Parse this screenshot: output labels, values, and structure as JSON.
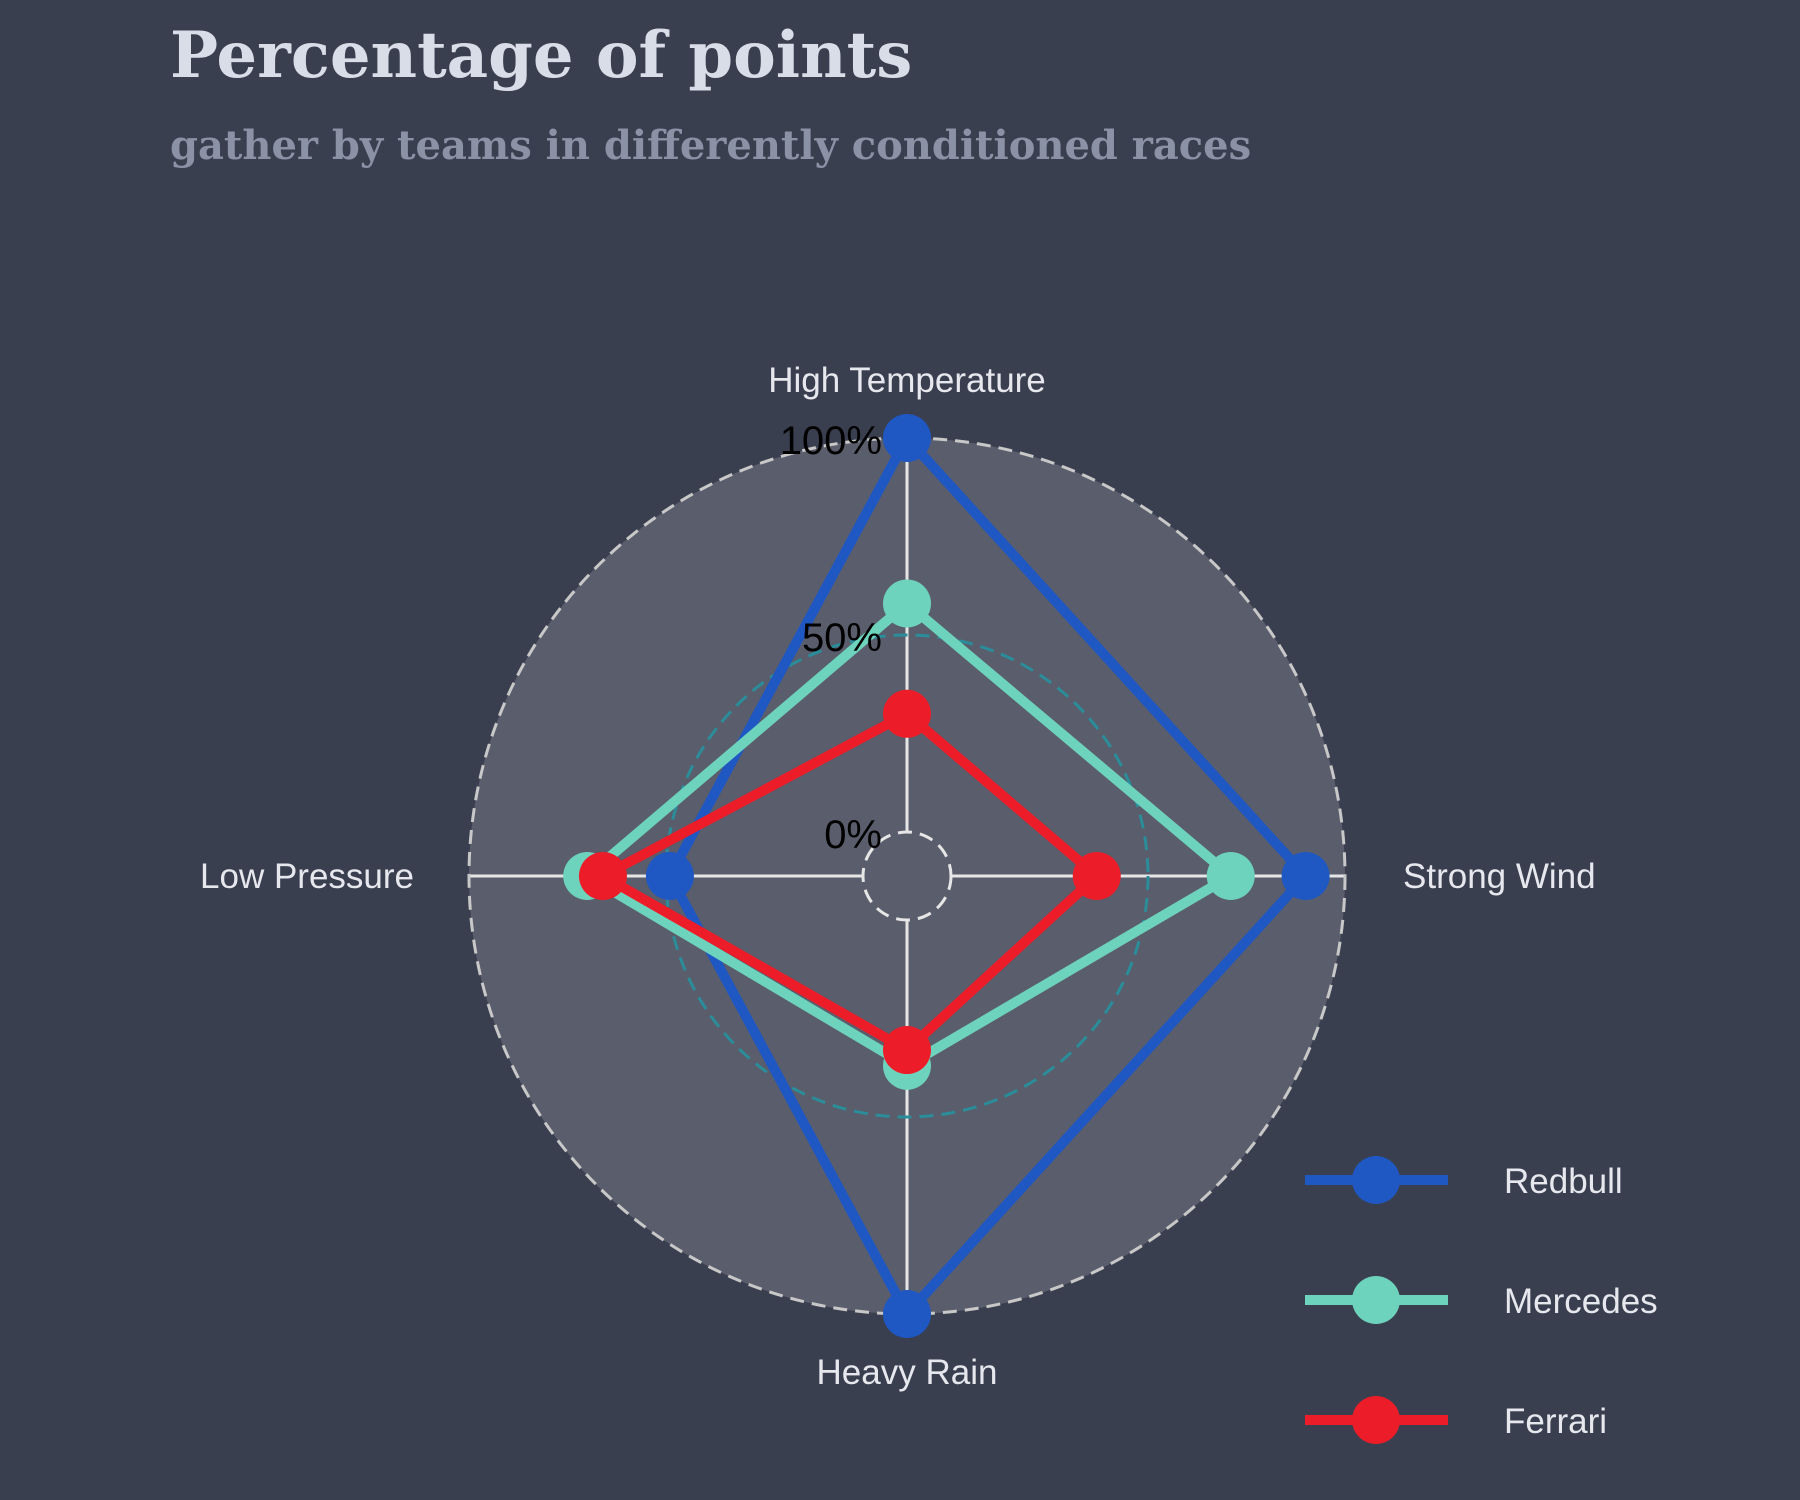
{
  "header": {
    "title": "Percentage of points",
    "subtitle": "gather by teams in differently conditioned races"
  },
  "colors": {
    "background": "#3a3f50",
    "plot_area": "#5a5d6c",
    "grid": "#e6e6e6",
    "inner_ring": "#2a8d99",
    "outer_ring": "#c8c8c8"
  },
  "chart_data": {
    "type": "radar",
    "title": "Percentage of points",
    "subtitle": "gather by teams in differently conditioned races",
    "categories": [
      "High Temperature",
      "Strong Wind",
      "Heavy Rain",
      "Low Pressure"
    ],
    "ylim": [
      0,
      100
    ],
    "tick_labels": [
      "0%",
      "50%",
      "100%"
    ],
    "series": [
      {
        "name": "Redbull",
        "color": "#1f57c3",
        "values": [
          100,
          90,
          100,
          49
        ]
      },
      {
        "name": "Mercedes",
        "color": "#6ed3bc",
        "values": [
          58,
          71,
          37,
          70
        ]
      },
      {
        "name": "Ferrari",
        "color": "#ec1c28",
        "values": [
          30,
          37,
          33,
          66
        ]
      }
    ],
    "legend_position": "bottom-right"
  }
}
